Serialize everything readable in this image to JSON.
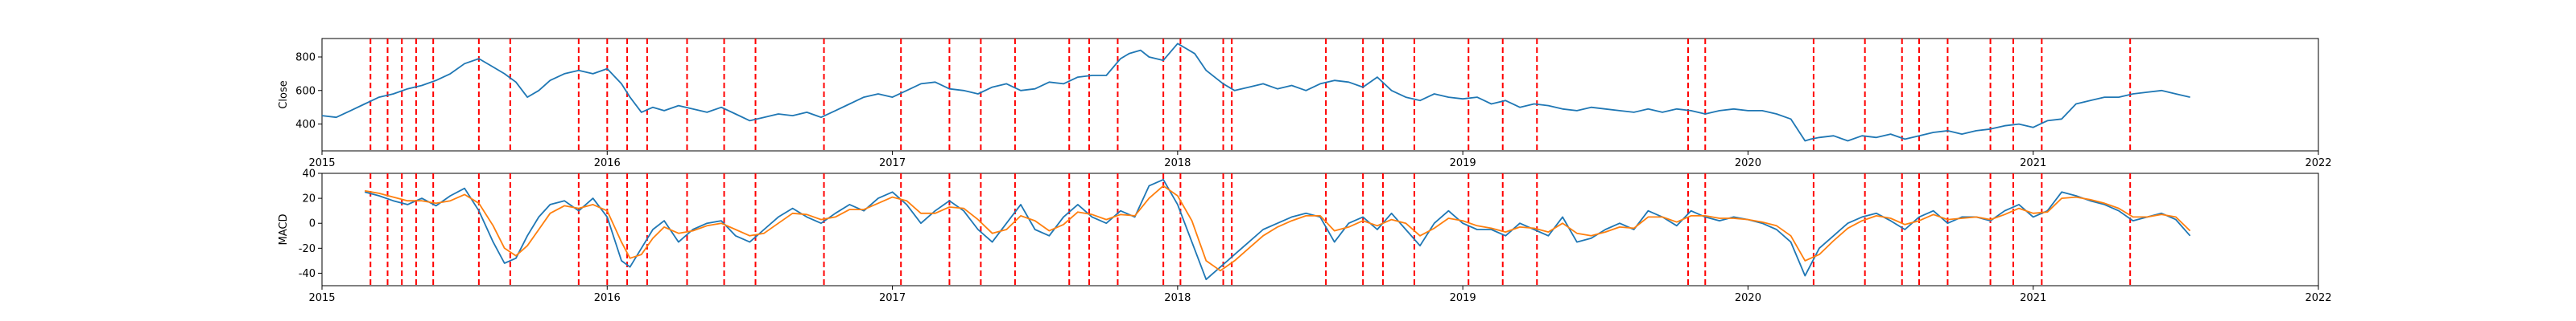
{
  "chart_data": [
    {
      "type": "line",
      "ylabel": "Close",
      "xlabel": "",
      "x_ticks": [
        "2015",
        "2016",
        "2017",
        "2018",
        "2019",
        "2020",
        "2021",
        "2022"
      ],
      "x_range": [
        2015.0,
        2022.0
      ],
      "ylim": [
        240,
        910
      ],
      "y_ticks": [
        400,
        600,
        800
      ],
      "series": [
        {
          "color": "#1f77b4",
          "x": [
            2015.0,
            2015.05,
            2015.1,
            2015.15,
            2015.2,
            2015.25,
            2015.3,
            2015.35,
            2015.4,
            2015.45,
            2015.5,
            2015.55,
            2015.6,
            2015.64,
            2015.68,
            2015.72,
            2015.76,
            2015.8,
            2015.85,
            2015.9,
            2015.95,
            2016.0,
            2016.05,
            2016.08,
            2016.12,
            2016.16,
            2016.2,
            2016.25,
            2016.3,
            2016.35,
            2016.4,
            2016.45,
            2016.5,
            2016.55,
            2016.6,
            2016.65,
            2016.7,
            2016.75,
            2016.8,
            2016.85,
            2016.9,
            2016.95,
            2017.0,
            2017.05,
            2017.1,
            2017.15,
            2017.2,
            2017.25,
            2017.3,
            2017.35,
            2017.4,
            2017.45,
            2017.5,
            2017.55,
            2017.6,
            2017.65,
            2017.7,
            2017.75,
            2017.8,
            2017.83,
            2017.87,
            2017.9,
            2017.95,
            2018.0,
            2018.03,
            2018.06,
            2018.1,
            2018.13,
            2018.16,
            2018.2,
            2018.25,
            2018.3,
            2018.35,
            2018.4,
            2018.45,
            2018.5,
            2018.55,
            2018.6,
            2018.65,
            2018.7,
            2018.75,
            2018.8,
            2018.85,
            2018.9,
            2018.95,
            2019.0,
            2019.05,
            2019.1,
            2019.15,
            2019.2,
            2019.25,
            2019.3,
            2019.35,
            2019.4,
            2019.45,
            2019.5,
            2019.55,
            2019.6,
            2019.65,
            2019.7,
            2019.75,
            2019.8,
            2019.85,
            2019.9,
            2019.95,
            2020.0,
            2020.05,
            2020.1,
            2020.15,
            2020.2,
            2020.22,
            2020.25,
            2020.3,
            2020.35,
            2020.4,
            2020.45,
            2020.5,
            2020.55,
            2020.6,
            2020.65,
            2020.7,
            2020.75,
            2020.8,
            2020.85,
            2020.9,
            2020.95,
            2021.0,
            2021.05,
            2021.1,
            2021.15,
            2021.2,
            2021.25,
            2021.3,
            2021.35,
            2021.4,
            2021.45,
            2021.5,
            2021.55
          ],
          "y": [
            450,
            440,
            480,
            520,
            560,
            580,
            610,
            630,
            660,
            700,
            760,
            790,
            740,
            700,
            650,
            560,
            600,
            660,
            700,
            720,
            700,
            730,
            640,
            560,
            470,
            500,
            480,
            510,
            490,
            470,
            500,
            460,
            420,
            440,
            460,
            450,
            470,
            440,
            480,
            520,
            560,
            580,
            560,
            600,
            640,
            650,
            610,
            600,
            580,
            620,
            640,
            600,
            610,
            650,
            640,
            680,
            690,
            690,
            790,
            820,
            840,
            800,
            780,
            880,
            850,
            820,
            720,
            680,
            640,
            600,
            620,
            640,
            610,
            630,
            600,
            640,
            660,
            650,
            620,
            680,
            600,
            560,
            540,
            580,
            560,
            550,
            560,
            520,
            540,
            500,
            520,
            510,
            490,
            480,
            500,
            490,
            480,
            470,
            490,
            470,
            490,
            480,
            460,
            480,
            490,
            480,
            480,
            460,
            430,
            300,
            310,
            320,
            330,
            300,
            330,
            320,
            340,
            310,
            330,
            350,
            360,
            340,
            360,
            370,
            390,
            400,
            380,
            420,
            430,
            520,
            540,
            560,
            560,
            580,
            590,
            600,
            580,
            560
          ]
        }
      ],
      "vlines_color": "#ff0000",
      "vlines_x": [
        2015.17,
        2015.23,
        2015.28,
        2015.33,
        2015.39,
        2015.55,
        2015.66,
        2015.9,
        2016.0,
        2016.07,
        2016.14,
        2016.28,
        2016.41,
        2016.52,
        2016.76,
        2017.03,
        2017.2,
        2017.31,
        2017.43,
        2017.62,
        2017.69,
        2017.79,
        2017.95,
        2018.01,
        2018.16,
        2018.19,
        2018.52,
        2018.65,
        2018.72,
        2018.83,
        2019.02,
        2019.14,
        2019.26,
        2019.79,
        2019.85,
        2020.23,
        2020.41,
        2020.54,
        2020.6,
        2020.7,
        2020.85,
        2020.93,
        2021.03,
        2021.34
      ]
    },
    {
      "type": "line",
      "ylabel": "MACD",
      "xlabel": "",
      "x_ticks": [
        "2015",
        "2016",
        "2017",
        "2018",
        "2019",
        "2020",
        "2021",
        "2022"
      ],
      "x_range": [
        2015.0,
        2022.0
      ],
      "ylim": [
        -50,
        40
      ],
      "y_ticks": [
        -40,
        -20,
        0,
        20,
        40
      ],
      "series": [
        {
          "color": "#1f77b4",
          "x": [
            2015.15,
            2015.2,
            2015.25,
            2015.3,
            2015.35,
            2015.4,
            2015.45,
            2015.5,
            2015.55,
            2015.6,
            2015.64,
            2015.68,
            2015.72,
            2015.76,
            2015.8,
            2015.85,
            2015.9,
            2015.95,
            2016.0,
            2016.05,
            2016.08,
            2016.12,
            2016.16,
            2016.2,
            2016.25,
            2016.3,
            2016.35,
            2016.4,
            2016.45,
            2016.5,
            2016.55,
            2016.6,
            2016.65,
            2016.7,
            2016.75,
            2016.8,
            2016.85,
            2016.9,
            2016.95,
            2017.0,
            2017.05,
            2017.1,
            2017.15,
            2017.2,
            2017.25,
            2017.3,
            2017.35,
            2017.4,
            2017.45,
            2017.5,
            2017.55,
            2017.6,
            2017.65,
            2017.7,
            2017.75,
            2017.8,
            2017.85,
            2017.9,
            2017.95,
            2018.0,
            2018.05,
            2018.1,
            2018.15,
            2018.2,
            2018.25,
            2018.3,
            2018.35,
            2018.4,
            2018.45,
            2018.5,
            2018.55,
            2018.6,
            2018.65,
            2018.7,
            2018.75,
            2018.8,
            2018.85,
            2018.9,
            2018.95,
            2019.0,
            2019.05,
            2019.1,
            2019.15,
            2019.2,
            2019.25,
            2019.3,
            2019.35,
            2019.4,
            2019.45,
            2019.5,
            2019.55,
            2019.6,
            2019.65,
            2019.7,
            2019.75,
            2019.8,
            2019.85,
            2019.9,
            2019.95,
            2020.0,
            2020.05,
            2020.1,
            2020.15,
            2020.2,
            2020.25,
            2020.3,
            2020.35,
            2020.4,
            2020.45,
            2020.5,
            2020.55,
            2020.6,
            2020.65,
            2020.7,
            2020.75,
            2020.8,
            2020.85,
            2020.9,
            2020.95,
            2021.0,
            2021.05,
            2021.1,
            2021.15,
            2021.2,
            2021.25,
            2021.3,
            2021.35,
            2021.4,
            2021.45,
            2021.5,
            2021.55
          ],
          "y": [
            25,
            22,
            18,
            15,
            20,
            14,
            22,
            28,
            10,
            -15,
            -32,
            -28,
            -10,
            5,
            15,
            18,
            10,
            20,
            5,
            -30,
            -35,
            -20,
            -5,
            2,
            -15,
            -5,
            0,
            2,
            -10,
            -15,
            -5,
            5,
            12,
            5,
            0,
            8,
            15,
            10,
            20,
            25,
            15,
            0,
            10,
            18,
            10,
            -5,
            -15,
            0,
            15,
            -5,
            -10,
            5,
            15,
            5,
            0,
            10,
            5,
            30,
            35,
            15,
            -15,
            -45,
            -35,
            -25,
            -15,
            -5,
            0,
            5,
            8,
            5,
            -15,
            0,
            5,
            -5,
            8,
            -5,
            -18,
            0,
            10,
            0,
            -5,
            -5,
            -10,
            0,
            -5,
            -10,
            5,
            -15,
            -12,
            -5,
            0,
            -5,
            10,
            5,
            -2,
            10,
            5,
            2,
            5,
            3,
            0,
            -5,
            -15,
            -42,
            -20,
            -10,
            0,
            5,
            8,
            2,
            -5,
            5,
            10,
            0,
            5,
            5,
            2,
            10,
            15,
            5,
            10,
            25,
            22,
            18,
            15,
            10,
            2,
            5,
            8,
            3,
            -10
          ]
        },
        {
          "color": "#ff7f0e",
          "x": [
            2015.15,
            2015.2,
            2015.25,
            2015.3,
            2015.35,
            2015.4,
            2015.45,
            2015.5,
            2015.55,
            2015.6,
            2015.64,
            2015.68,
            2015.72,
            2015.76,
            2015.8,
            2015.85,
            2015.9,
            2015.95,
            2016.0,
            2016.05,
            2016.08,
            2016.12,
            2016.16,
            2016.2,
            2016.25,
            2016.3,
            2016.35,
            2016.4,
            2016.45,
            2016.5,
            2016.55,
            2016.6,
            2016.65,
            2016.7,
            2016.75,
            2016.8,
            2016.85,
            2016.9,
            2016.95,
            2017.0,
            2017.05,
            2017.1,
            2017.15,
            2017.2,
            2017.25,
            2017.3,
            2017.35,
            2017.4,
            2017.45,
            2017.5,
            2017.55,
            2017.6,
            2017.65,
            2017.7,
            2017.75,
            2017.8,
            2017.85,
            2017.9,
            2017.95,
            2018.0,
            2018.05,
            2018.1,
            2018.15,
            2018.2,
            2018.25,
            2018.3,
            2018.35,
            2018.4,
            2018.45,
            2018.5,
            2018.55,
            2018.6,
            2018.65,
            2018.7,
            2018.75,
            2018.8,
            2018.85,
            2018.9,
            2018.95,
            2019.0,
            2019.05,
            2019.1,
            2019.15,
            2019.2,
            2019.25,
            2019.3,
            2019.35,
            2019.4,
            2019.45,
            2019.5,
            2019.55,
            2019.6,
            2019.65,
            2019.7,
            2019.75,
            2019.8,
            2019.85,
            2019.9,
            2019.95,
            2020.0,
            2020.05,
            2020.1,
            2020.15,
            2020.2,
            2020.25,
            2020.3,
            2020.35,
            2020.4,
            2020.45,
            2020.5,
            2020.55,
            2020.6,
            2020.65,
            2020.7,
            2020.75,
            2020.8,
            2020.85,
            2020.9,
            2020.95,
            2021.0,
            2021.05,
            2021.1,
            2021.15,
            2021.2,
            2021.25,
            2021.3,
            2021.35,
            2021.4,
            2021.45,
            2021.5,
            2021.55
          ],
          "y": [
            26,
            24,
            21,
            18,
            18,
            16,
            18,
            23,
            16,
            -2,
            -20,
            -26,
            -18,
            -5,
            8,
            14,
            12,
            15,
            10,
            -15,
            -28,
            -25,
            -12,
            -3,
            -8,
            -6,
            -2,
            0,
            -5,
            -10,
            -8,
            0,
            8,
            7,
            3,
            5,
            11,
            11,
            16,
            21,
            18,
            8,
            8,
            13,
            12,
            3,
            -8,
            -5,
            6,
            2,
            -6,
            -1,
            9,
            7,
            3,
            7,
            6,
            20,
            30,
            22,
            2,
            -30,
            -38,
            -30,
            -20,
            -10,
            -3,
            2,
            6,
            6,
            -6,
            -3,
            2,
            -2,
            3,
            0,
            -10,
            -4,
            4,
            2,
            -2,
            -4,
            -7,
            -3,
            -4,
            -7,
            0,
            -8,
            -10,
            -7,
            -3,
            -4,
            5,
            5,
            1,
            6,
            6,
            4,
            4,
            3,
            1,
            -2,
            -10,
            -30,
            -25,
            -14,
            -4,
            2,
            6,
            4,
            -1,
            2,
            7,
            3,
            4,
            5,
            3,
            7,
            12,
            8,
            9,
            20,
            21,
            19,
            16,
            12,
            5,
            5,
            7,
            5,
            -6
          ]
        }
      ],
      "vlines_color": "#ff0000",
      "vlines_x": [
        2015.17,
        2015.23,
        2015.28,
        2015.33,
        2015.39,
        2015.55,
        2015.66,
        2015.9,
        2016.0,
        2016.07,
        2016.14,
        2016.28,
        2016.41,
        2016.52,
        2016.76,
        2017.03,
        2017.2,
        2017.31,
        2017.43,
        2017.62,
        2017.69,
        2017.79,
        2017.95,
        2018.01,
        2018.16,
        2018.19,
        2018.52,
        2018.65,
        2018.72,
        2018.83,
        2019.02,
        2019.14,
        2019.26,
        2019.79,
        2019.85,
        2020.23,
        2020.41,
        2020.54,
        2020.6,
        2020.7,
        2020.85,
        2020.93,
        2021.03,
        2021.34
      ]
    }
  ]
}
